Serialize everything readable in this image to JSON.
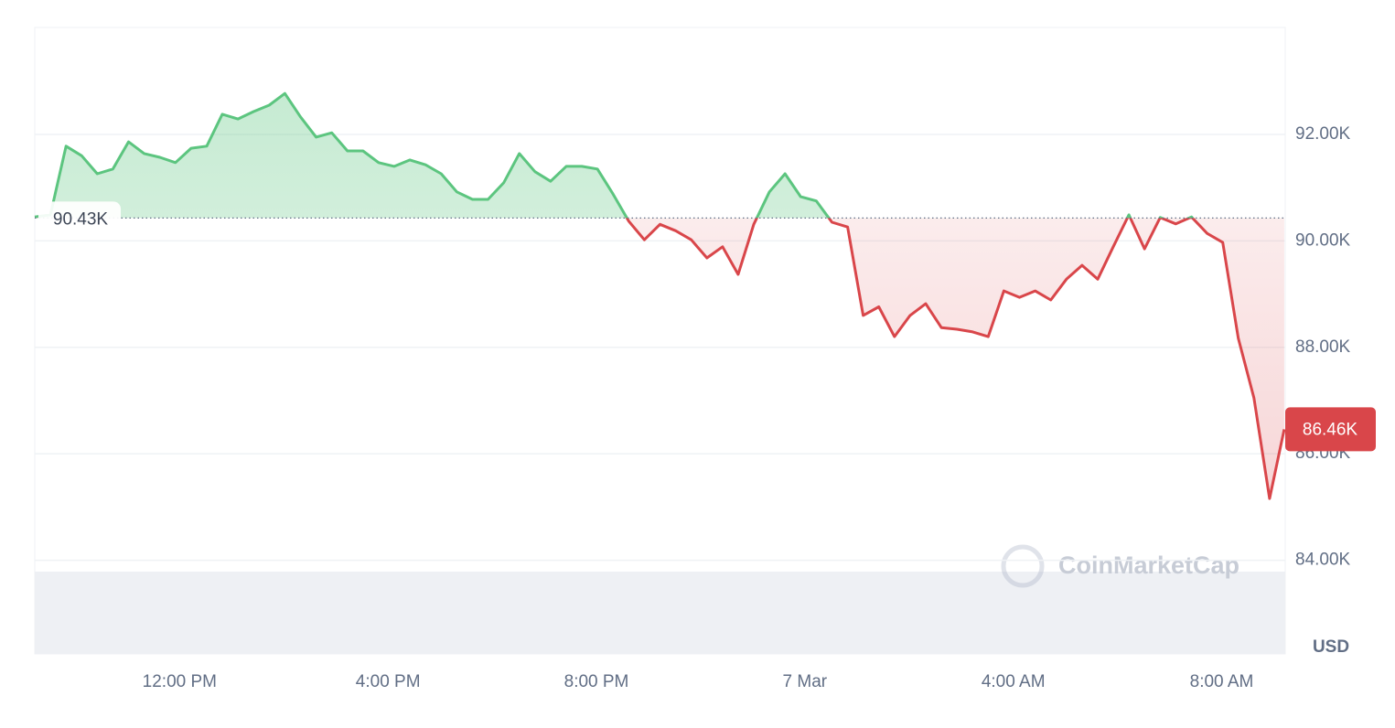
{
  "chart_data": {
    "type": "line",
    "x": [
      9.22,
      9.52,
      9.82,
      10.12,
      10.42,
      10.72,
      11.02,
      11.32,
      11.62,
      11.92,
      12.22,
      12.52,
      12.82,
      13.12,
      13.42,
      13.72,
      14.02,
      14.32,
      14.62,
      14.92,
      15.22,
      15.52,
      15.82,
      16.12,
      16.42,
      16.72,
      17.02,
      17.32,
      17.62,
      17.92,
      18.22,
      18.52,
      18.82,
      19.12,
      19.42,
      19.72,
      20.02,
      20.32,
      20.62,
      20.92,
      21.22,
      21.52,
      21.82,
      22.12,
      22.42,
      22.72,
      23.02,
      23.32,
      23.62,
      23.92,
      24.22,
      24.52,
      24.82,
      25.12,
      25.42,
      25.72,
      26.02,
      26.32,
      26.62,
      26.92,
      27.22,
      27.52,
      27.82,
      28.12,
      28.42,
      28.72,
      29.02,
      29.32,
      29.62,
      29.92,
      30.22,
      30.52,
      30.82,
      31.12,
      31.42,
      31.72,
      32.02,
      32.32,
      32.62,
      32.92,
      33.2
    ],
    "values": [
      90450,
      90490,
      91780,
      91600,
      91260,
      91350,
      91860,
      91640,
      91570,
      91470,
      91740,
      91780,
      92380,
      92290,
      92430,
      92550,
      92770,
      92330,
      91950,
      92030,
      91690,
      91690,
      91470,
      91400,
      91520,
      91430,
      91260,
      90920,
      90780,
      90780,
      91090,
      91640,
      91300,
      91120,
      91400,
      91400,
      91350,
      90880,
      90370,
      90020,
      90310,
      90190,
      90020,
      89680,
      89890,
      89370,
      90310,
      90920,
      91260,
      90830,
      90750,
      90350,
      90260,
      88600,
      88760,
      88200,
      88600,
      88820,
      88370,
      88340,
      88290,
      88200,
      89060,
      88940,
      89060,
      88890,
      89280,
      89540,
      89280,
      89890,
      90490,
      89850,
      90440,
      90320,
      90450,
      90140,
      89970,
      88170,
      87050,
      85160,
      86460
    ],
    "up_color": "#5cc57f",
    "down_color": "#d9464a",
    "reference": {
      "value": 90430,
      "label": "90.43K"
    },
    "last_price": {
      "value": 86460,
      "label": "86.46K"
    },
    "xlim": [
      9.22,
      33.22
    ],
    "xticks": [
      {
        "value": 12,
        "label": "12:00 PM"
      },
      {
        "value": 16,
        "label": "4:00 PM"
      },
      {
        "value": 20,
        "label": "8:00 PM"
      },
      {
        "value": 24,
        "label": "7 Mar"
      },
      {
        "value": 28,
        "label": "4:00 AM"
      },
      {
        "value": 32,
        "label": "8:00 AM"
      }
    ],
    "ylim": [
      82240,
      94010
    ],
    "yticks": [
      {
        "value": 84000,
        "label": "84.00K"
      },
      {
        "value": 86000,
        "label": "86.00K"
      },
      {
        "value": 88000,
        "label": "88.00K"
      },
      {
        "value": 90000,
        "label": "90.00K"
      },
      {
        "value": 92000,
        "label": "92.00K"
      }
    ],
    "currency": "USD",
    "watermark": "CoinMarketCap",
    "grid": true
  }
}
